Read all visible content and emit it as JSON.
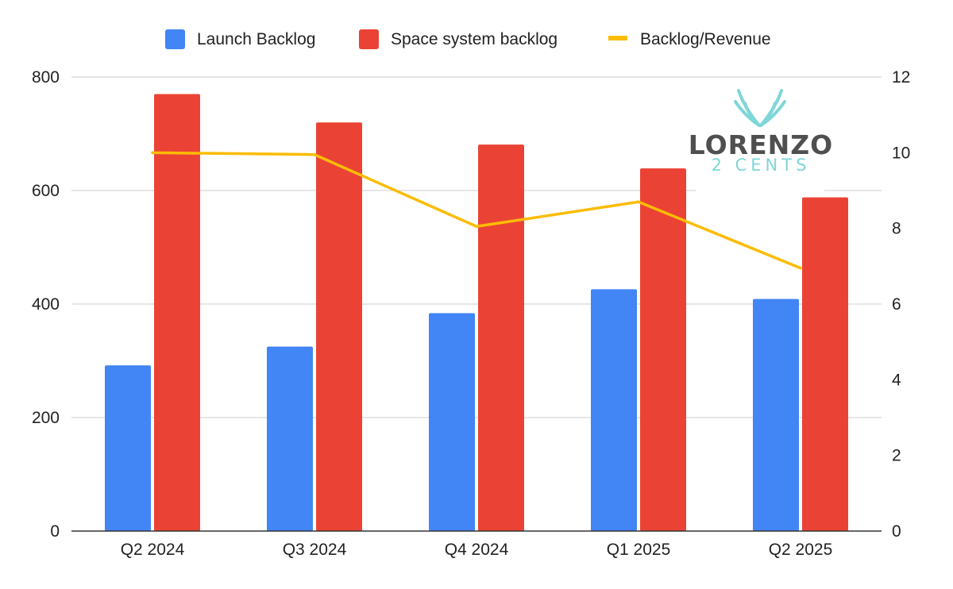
{
  "chart_data": {
    "type": "bar",
    "categories": [
      "Q2 2024",
      "Q3 2024",
      "Q4 2024",
      "Q1 2025",
      "Q2 2025"
    ],
    "series": [
      {
        "name": "Launch Backlog",
        "type": "bar",
        "axis": "left",
        "color": "#4285f4",
        "values": [
          292,
          325,
          384,
          426,
          409
        ]
      },
      {
        "name": "Space system backlog",
        "type": "bar",
        "axis": "left",
        "color": "#ea4335",
        "values": [
          770,
          720,
          681,
          639,
          588
        ]
      },
      {
        "name": "Backlog/Revenue",
        "type": "line",
        "axis": "right",
        "color": "#fbbc04",
        "values": [
          10.0,
          9.95,
          8.05,
          8.7,
          6.95
        ]
      }
    ],
    "y_left": {
      "min": 0,
      "max": 800,
      "ticks": [
        0,
        200,
        400,
        600,
        800
      ]
    },
    "y_right": {
      "min": 0,
      "max": 12,
      "ticks": [
        0,
        2,
        4,
        6,
        8,
        10,
        12
      ]
    },
    "title": "",
    "xlabel": "",
    "ylabel": "",
    "grid": true,
    "legend_position": "top-center"
  },
  "watermark": {
    "name": "LORENZO",
    "sub": "2 CENTS",
    "accent": "#7fd6d8",
    "text_color": "#4f4f4f"
  }
}
